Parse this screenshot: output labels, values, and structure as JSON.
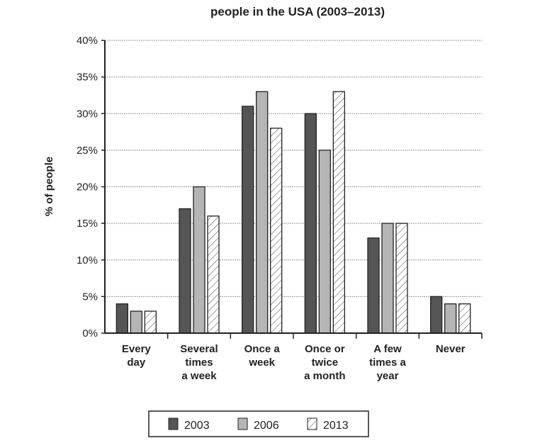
{
  "chart_data": {
    "type": "bar",
    "title": "people in the USA (2003–2013)",
    "ylabel": "% of people",
    "xlabel": "",
    "ylim": [
      0,
      40
    ],
    "yticks": [
      "0%",
      "5%",
      "10%",
      "15%",
      "20%",
      "25%",
      "30%",
      "35%",
      "40%"
    ],
    "grid": true,
    "legend": "bottom",
    "categories": [
      [
        "Every",
        "day"
      ],
      [
        "Several",
        "times",
        "a week"
      ],
      [
        "Once a",
        "week"
      ],
      [
        "Once or",
        "twice",
        "a month"
      ],
      [
        "A few",
        "times a",
        "year"
      ],
      [
        "Never"
      ]
    ],
    "series": [
      {
        "name": "2003",
        "values": [
          4,
          17,
          31,
          30,
          13,
          5
        ],
        "color": "#555555",
        "pattern": "solid-dark"
      },
      {
        "name": "2006",
        "values": [
          3,
          20,
          33,
          25,
          15,
          4
        ],
        "color": "#b5b5b5",
        "pattern": "solid-light"
      },
      {
        "name": "2013",
        "values": [
          3,
          16,
          28,
          33,
          15,
          4
        ],
        "color": "#ffffff",
        "pattern": "hatched"
      }
    ]
  }
}
